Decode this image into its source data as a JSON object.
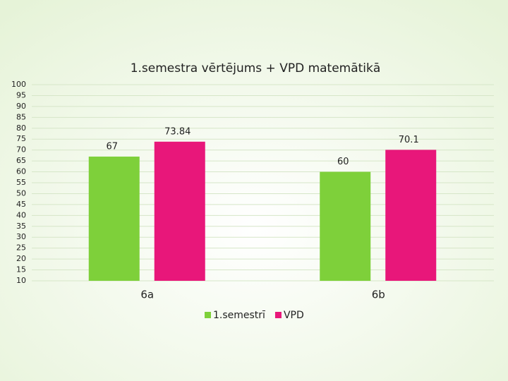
{
  "chart_data": {
    "type": "bar",
    "title": "1.semestra vērtējums + VPD  matemātikā",
    "categories": [
      "6a",
      "6b"
    ],
    "series": [
      {
        "name": "1.semestrī",
        "color": "#7ed03a",
        "values": [
          67,
          60
        ]
      },
      {
        "name": "VPD",
        "color": "#e8177a",
        "values": [
          73.84,
          70.1
        ]
      }
    ],
    "ylim": [
      10,
      100
    ],
    "yticks": [
      10,
      15,
      20,
      25,
      30,
      35,
      40,
      45,
      50,
      55,
      60,
      65,
      70,
      75,
      80,
      85,
      90,
      95,
      100
    ],
    "grid": true,
    "legend": "bottom"
  }
}
